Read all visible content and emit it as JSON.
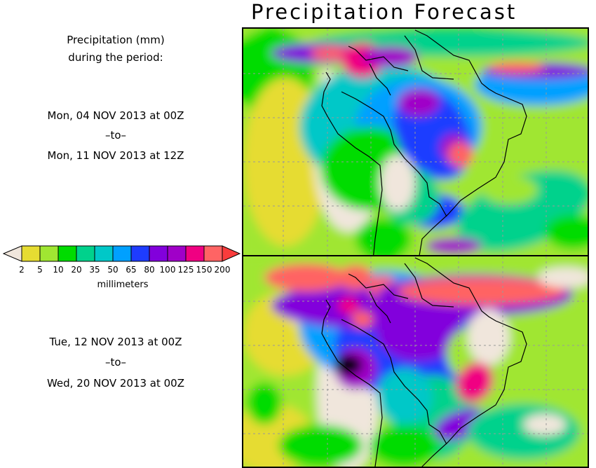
{
  "title": "Precipitation Forecast",
  "description": {
    "line1": "Precipitation (mm)",
    "line2": "during the period:"
  },
  "period1": {
    "start": "Mon, 04 NOV 2013 at 00Z",
    "sep": "–to–",
    "end": "Mon, 11 NOV 2013 at 12Z"
  },
  "period2": {
    "start": "Tue, 12 NOV 2013 at 00Z",
    "sep": "–to–",
    "end": "Wed, 20 NOV 2013 at 00Z"
  },
  "legend": {
    "units": "millimeters",
    "ticks": [
      "2",
      "5",
      "10",
      "20",
      "35",
      "50",
      "65",
      "80",
      "100",
      "125",
      "150",
      "200"
    ],
    "under_color": "#f0e6dc",
    "over_color": "#fa3c3c",
    "colors": [
      "#e6dc32",
      "#a0e632",
      "#00dc00",
      "#00d28c",
      "#00c8c8",
      "#00a0ff",
      "#1e3cff",
      "#8200dc",
      "#a000c8",
      "#f00082",
      "#ff6464"
    ]
  }
}
